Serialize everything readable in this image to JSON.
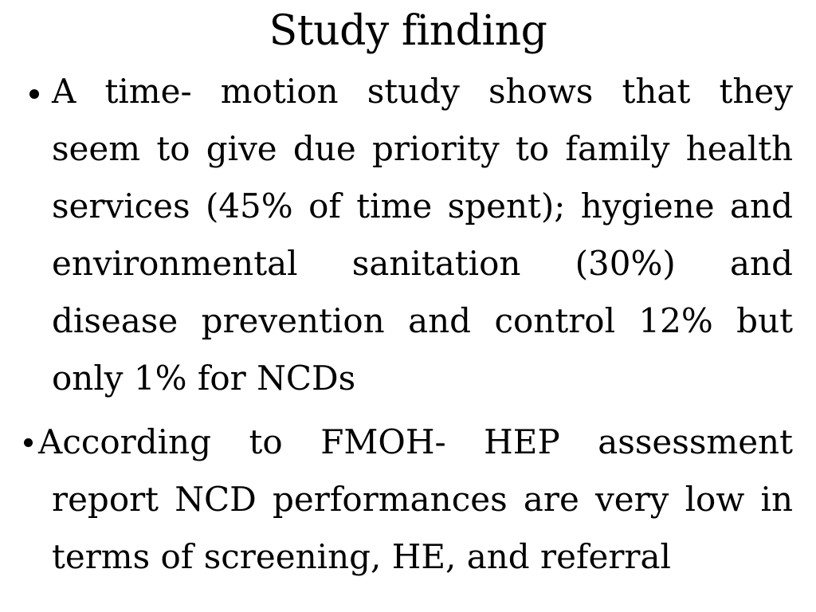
{
  "slide": {
    "title": "Study finding",
    "bullet_glyph": "•",
    "colors": {
      "background": "#ffffff",
      "text": "#000000"
    },
    "bullets": [
      {
        "lines": [
          "A time- motion study shows that they",
          "seem to give due priority to family health",
          "services (45% of time spent); hygiene and",
          "environmental sanitation (30%) and",
          "disease prevention and control 12% but",
          "only 1% for NCDs"
        ]
      },
      {
        "lines": [
          "According to FMOH- HEP assessment",
          "report NCD performances are very low in",
          "terms of screening, HE, and referral"
        ]
      }
    ]
  }
}
